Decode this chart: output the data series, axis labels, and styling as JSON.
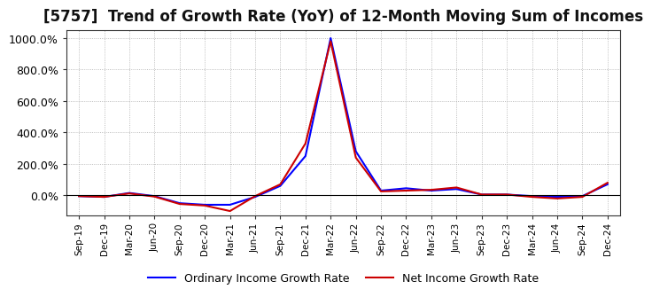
{
  "title": "[5757]  Trend of Growth Rate (YoY) of 12-Month Moving Sum of Incomes",
  "title_fontsize": 12,
  "background_color": "#ffffff",
  "plot_bg_color": "#ffffff",
  "grid_color": "#aaaaaa",
  "xlabel": "",
  "ylabel": "",
  "ylim": [
    -130,
    1050
  ],
  "yticks": [
    0,
    200,
    400,
    600,
    800,
    1000
  ],
  "ytick_labels": [
    "0.0%",
    "200.0%",
    "400.0%",
    "600.0%",
    "800.0%",
    "1000.0%"
  ],
  "legend_labels": [
    "Ordinary Income Growth Rate",
    "Net Income Growth Rate"
  ],
  "legend_colors": [
    "#0000ff",
    "#cc0000"
  ],
  "x_labels": [
    "Sep-19",
    "Dec-19",
    "Mar-20",
    "Jun-20",
    "Sep-20",
    "Dec-20",
    "Mar-21",
    "Jun-21",
    "Sep-21",
    "Dec-21",
    "Mar-22",
    "Jun-22",
    "Sep-22",
    "Dec-22",
    "Mar-23",
    "Jun-23",
    "Sep-23",
    "Dec-23",
    "Mar-24",
    "Jun-24",
    "Sep-24",
    "Dec-24"
  ],
  "ordinary_income": [
    -5,
    -10,
    15,
    -5,
    -50,
    -60,
    -60,
    -10,
    60,
    250,
    1000,
    280,
    30,
    45,
    30,
    40,
    5,
    5,
    -5,
    -10,
    -5,
    70
  ],
  "net_income": [
    -5,
    -10,
    12,
    -8,
    -55,
    -65,
    -100,
    -5,
    70,
    330,
    980,
    240,
    25,
    30,
    35,
    50,
    5,
    5,
    -10,
    -20,
    -10,
    80
  ]
}
